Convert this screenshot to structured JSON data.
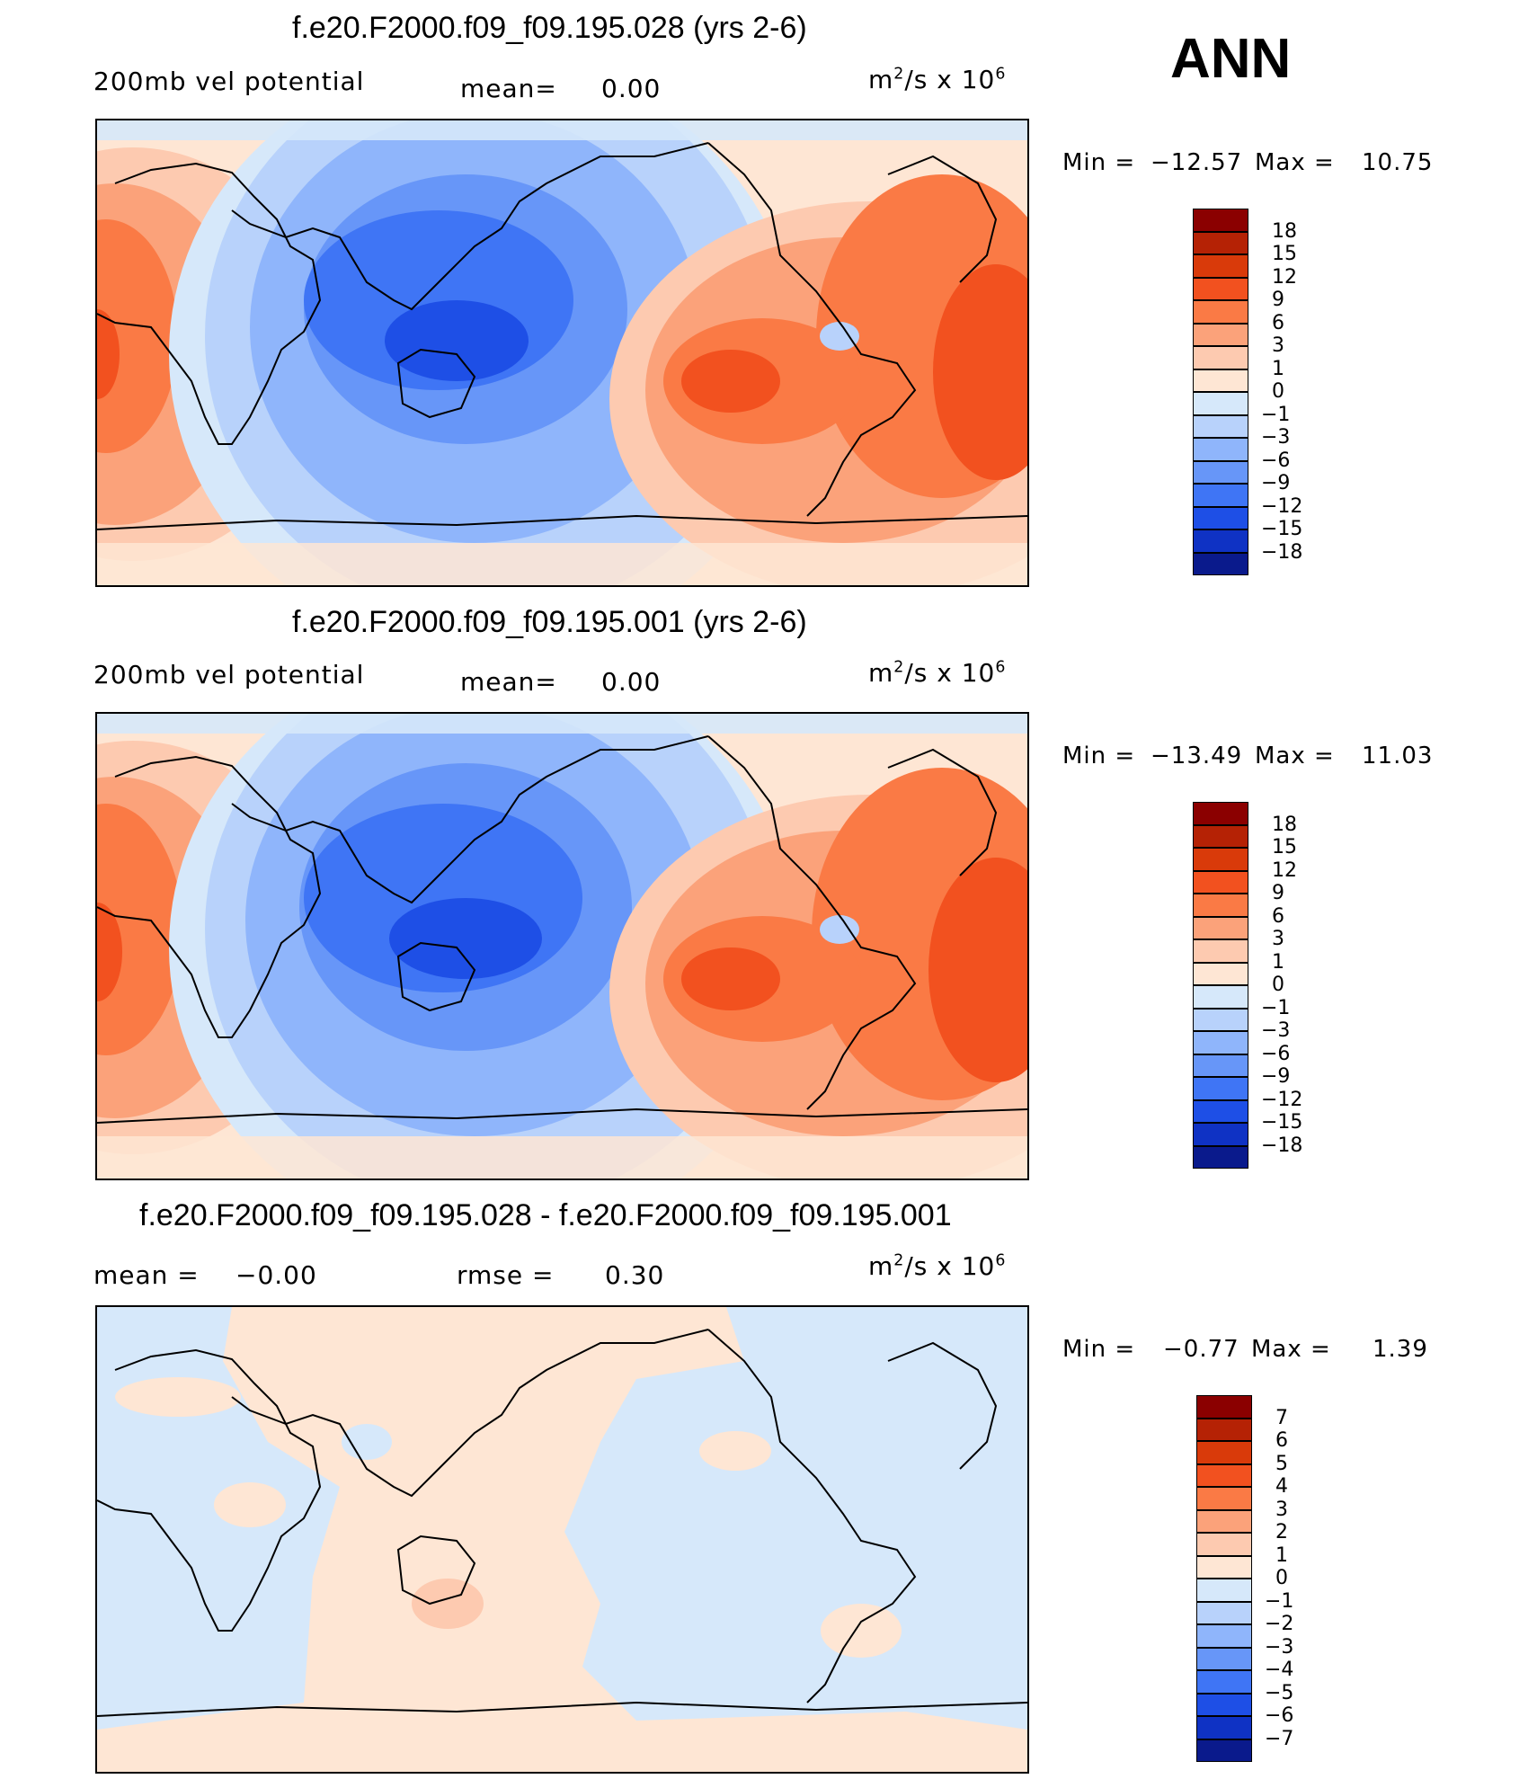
{
  "season_label": "ANN",
  "panels": [
    {
      "title": "f.e20.F2000.f09_f09.195.028 (yrs 2-6)",
      "left_label": "200mb vel potential",
      "mid_label": "mean=",
      "mid_value": "0.00",
      "units_base": "m",
      "units_exp": "2",
      "units_mid": "/s x 10",
      "units_exp2": "6",
      "min_label": "Min =",
      "min_value": "−12.57",
      "max_label": "Max =",
      "max_value": "10.75"
    },
    {
      "title": "f.e20.F2000.f09_f09.195.001 (yrs 2-6)",
      "left_label": "200mb vel potential",
      "mid_label": "mean=",
      "mid_value": "0.00",
      "units_base": "m",
      "units_exp": "2",
      "units_mid": "/s x 10",
      "units_exp2": "6",
      "min_label": "Min =",
      "min_value": "−13.49",
      "max_label": "Max =",
      "max_value": "11.03"
    },
    {
      "title": "f.e20.F2000.f09_f09.195.028 - f.e20.F2000.f09_f09.195.001",
      "left_label": "mean =",
      "left_value": "−0.00",
      "mid_label": "rmse =",
      "mid_value": "0.30",
      "units_base": "m",
      "units_exp": "2",
      "units_mid": "/s x 10",
      "units_exp2": "6",
      "min_label": "Min =",
      "min_value": "−0.77",
      "max_label": "Max =",
      "max_value": "1.39"
    }
  ],
  "colorbar_main": {
    "labels": [
      "18",
      "15",
      "12",
      "9",
      "6",
      "3",
      "1",
      "0",
      "−1",
      "−3",
      "−6",
      "−9",
      "−12",
      "−15",
      "−18"
    ],
    "colors": [
      "#8b0000",
      "#b52205",
      "#d93a0a",
      "#f2511f",
      "#fa7a45",
      "#fba27a",
      "#fdcab0",
      "#fee6d4",
      "#d6e8fa",
      "#b8d2fb",
      "#8fb5fb",
      "#6796f8",
      "#3f75f5",
      "#1e4fe6",
      "#0f32c4",
      "#0a1a8c"
    ]
  },
  "colorbar_diff": {
    "labels": [
      "7",
      "6",
      "5",
      "4",
      "3",
      "2",
      "1",
      "0",
      "−1",
      "−2",
      "−3",
      "−4",
      "−5",
      "−6",
      "−7"
    ],
    "colors": [
      "#8b0000",
      "#b52205",
      "#d93a0a",
      "#f2511f",
      "#fa7a45",
      "#fba27a",
      "#fdcab0",
      "#fee6d4",
      "#d6e8fa",
      "#b8d2fb",
      "#8fb5fb",
      "#6796f8",
      "#3f75f5",
      "#1e4fe6",
      "#0f32c4",
      "#0a1a8c"
    ]
  }
}
